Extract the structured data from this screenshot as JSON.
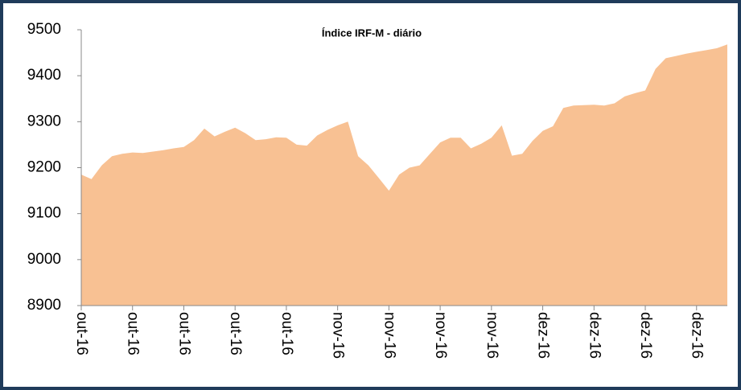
{
  "chart_data": {
    "type": "area",
    "title": "Índice IRF-M - diário",
    "categories": [
      "out-16",
      null,
      null,
      null,
      null,
      "out-16",
      null,
      null,
      null,
      null,
      "out-16",
      null,
      null,
      null,
      null,
      "out-16",
      null,
      null,
      null,
      null,
      "out-16",
      null,
      null,
      null,
      null,
      "nov-16",
      null,
      null,
      null,
      null,
      "nov-16",
      null,
      null,
      null,
      null,
      "nov-16",
      null,
      null,
      null,
      null,
      "nov-16",
      null,
      null,
      null,
      null,
      "dez-16",
      null,
      null,
      null,
      null,
      "dez-16",
      null,
      null,
      null,
      null,
      "dez-16",
      null,
      null,
      null,
      null,
      "dez-16",
      null,
      null,
      null
    ],
    "values": [
      9185,
      9175,
      9205,
      9225,
      9230,
      9233,
      9232,
      9235,
      9238,
      9242,
      9245,
      9260,
      9285,
      9268,
      9278,
      9287,
      9275,
      9260,
      9262,
      9266,
      9265,
      9250,
      9248,
      9270,
      9282,
      9292,
      9300,
      9225,
      9205,
      9178,
      9150,
      9185,
      9200,
      9205,
      9230,
      9255,
      9265,
      9265,
      9242,
      9252,
      9265,
      9292,
      9226,
      9230,
      9258,
      9280,
      9290,
      9330,
      9335,
      9336,
      9337,
      9335,
      9340,
      9355,
      9362,
      9368,
      9415,
      9438,
      9443,
      9448,
      9452,
      9456,
      9460,
      9468
    ],
    "color": "#f8c193",
    "ylim": [
      8900,
      9500
    ],
    "yticks": [
      8900,
      9000,
      9100,
      9200,
      9300,
      9400,
      9500
    ],
    "grid": false
  }
}
